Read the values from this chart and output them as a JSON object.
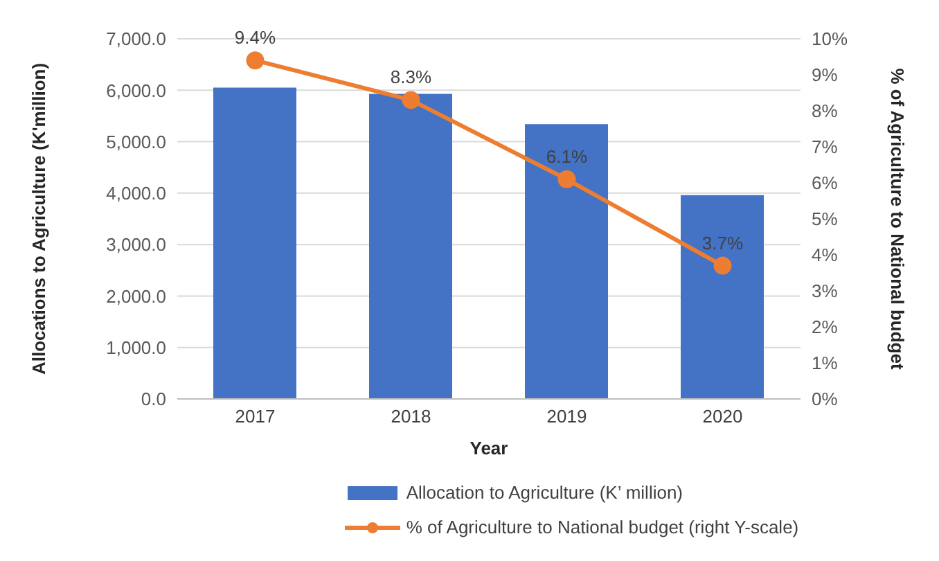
{
  "chart_data": {
    "type": "bar",
    "xlabel": "Year",
    "ylabel": "Allocations to Agriculture  (K'million)",
    "y2label": "% of Agriculture  to National budget",
    "categories": [
      "2017",
      "2018",
      "2019",
      "2020"
    ],
    "series": [
      {
        "name": "Allocation to Agriculture (K’ million)",
        "color": "#4472c4",
        "values": [
          6050,
          5930,
          5340,
          3960
        ]
      },
      {
        "name": "% of Agriculture to National budget (right Y-scale)",
        "type": "line",
        "axis": "y2",
        "color": "#ed7d31",
        "values": [
          9.4,
          8.3,
          6.1,
          3.7
        ],
        "value_labels": [
          "9.4%",
          "8.3%",
          "6.1%",
          "3.7%"
        ],
        "marker": "circle"
      }
    ],
    "ylim": [
      0,
      7000
    ],
    "yticks": [
      {
        "value": 0,
        "label": "0.0"
      },
      {
        "value": 1000,
        "label": "1,000.0"
      },
      {
        "value": 2000,
        "label": "2,000.0"
      },
      {
        "value": 3000,
        "label": "3,000.0"
      },
      {
        "value": 4000,
        "label": "4,000.0"
      },
      {
        "value": 5000,
        "label": "5,000.0"
      },
      {
        "value": 6000,
        "label": "6,000.0"
      },
      {
        "value": 7000,
        "label": "7,000.0"
      }
    ],
    "y2lim": [
      0,
      10
    ],
    "y2ticks": [
      {
        "value": 0,
        "label": "0%"
      },
      {
        "value": 1,
        "label": "1%"
      },
      {
        "value": 2,
        "label": "2%"
      },
      {
        "value": 3,
        "label": "3%"
      },
      {
        "value": 4,
        "label": "4%"
      },
      {
        "value": 5,
        "label": "5%"
      },
      {
        "value": 6,
        "label": "6%"
      },
      {
        "value": 7,
        "label": "7%"
      },
      {
        "value": 8,
        "label": "8%"
      },
      {
        "value": 9,
        "label": "9%"
      },
      {
        "value": 10,
        "label": "10%"
      }
    ],
    "grid": "y",
    "legend": "bottom"
  }
}
